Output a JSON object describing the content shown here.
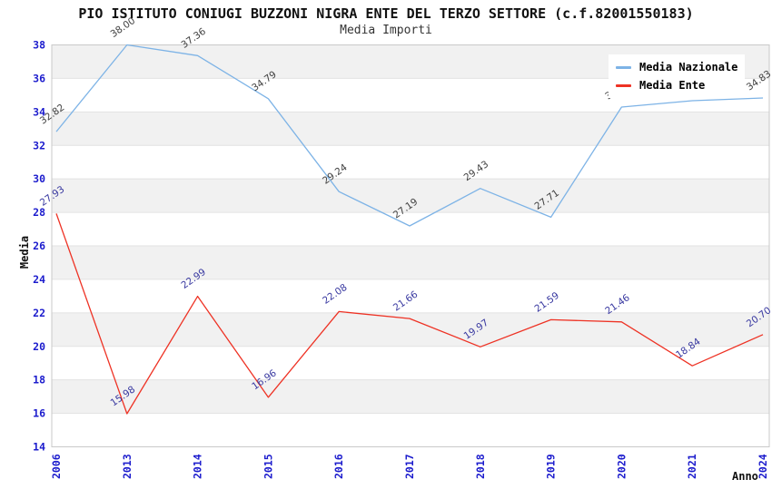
{
  "header": {
    "title": "PIO ISTITUTO CONIUGI BUZZONI NIGRA ENTE DEL TERZO SETTORE (c.f.82001550183)",
    "subtitle": "Media Importi"
  },
  "axes": {
    "y_label": "Media",
    "x_label": "Anno"
  },
  "legend": {
    "items": [
      {
        "label": "Media Nazionale"
      },
      {
        "label": "Media Ente"
      }
    ]
  },
  "chart_data": {
    "type": "line",
    "title": "PIO ISTITUTO CONIUGI BUZZONI NIGRA ENTE DEL TERZO SETTORE (c.f.82001550183)",
    "subtitle": "Media Importi",
    "xlabel": "Anno",
    "ylabel": "Media",
    "categories": [
      "2006",
      "2013",
      "2014",
      "2015",
      "2016",
      "2017",
      "2018",
      "2019",
      "2020",
      "2021",
      "2024"
    ],
    "series": [
      {
        "name": "Media Nazionale",
        "color": "#7db3e6",
        "label_color": "#3f3f3f",
        "values": [
          32.82,
          38.0,
          37.36,
          34.79,
          29.24,
          27.19,
          29.43,
          27.71,
          34.29,
          34.67,
          34.83
        ]
      },
      {
        "name": "Media Ente",
        "color": "#ee3224",
        "label_color": "#3838a0",
        "values": [
          27.93,
          15.98,
          22.99,
          16.96,
          22.08,
          21.66,
          19.97,
          21.59,
          21.46,
          18.84,
          20.7
        ]
      }
    ],
    "ylim": [
      14,
      38
    ],
    "ytick_step": 2,
    "grid": true,
    "band_fill": "#f1f1f1",
    "grid_color": "#e2e2e2",
    "border_color": "#c9c9c9",
    "tick_color": "#1c1ccd",
    "legend_position": "top-right"
  }
}
